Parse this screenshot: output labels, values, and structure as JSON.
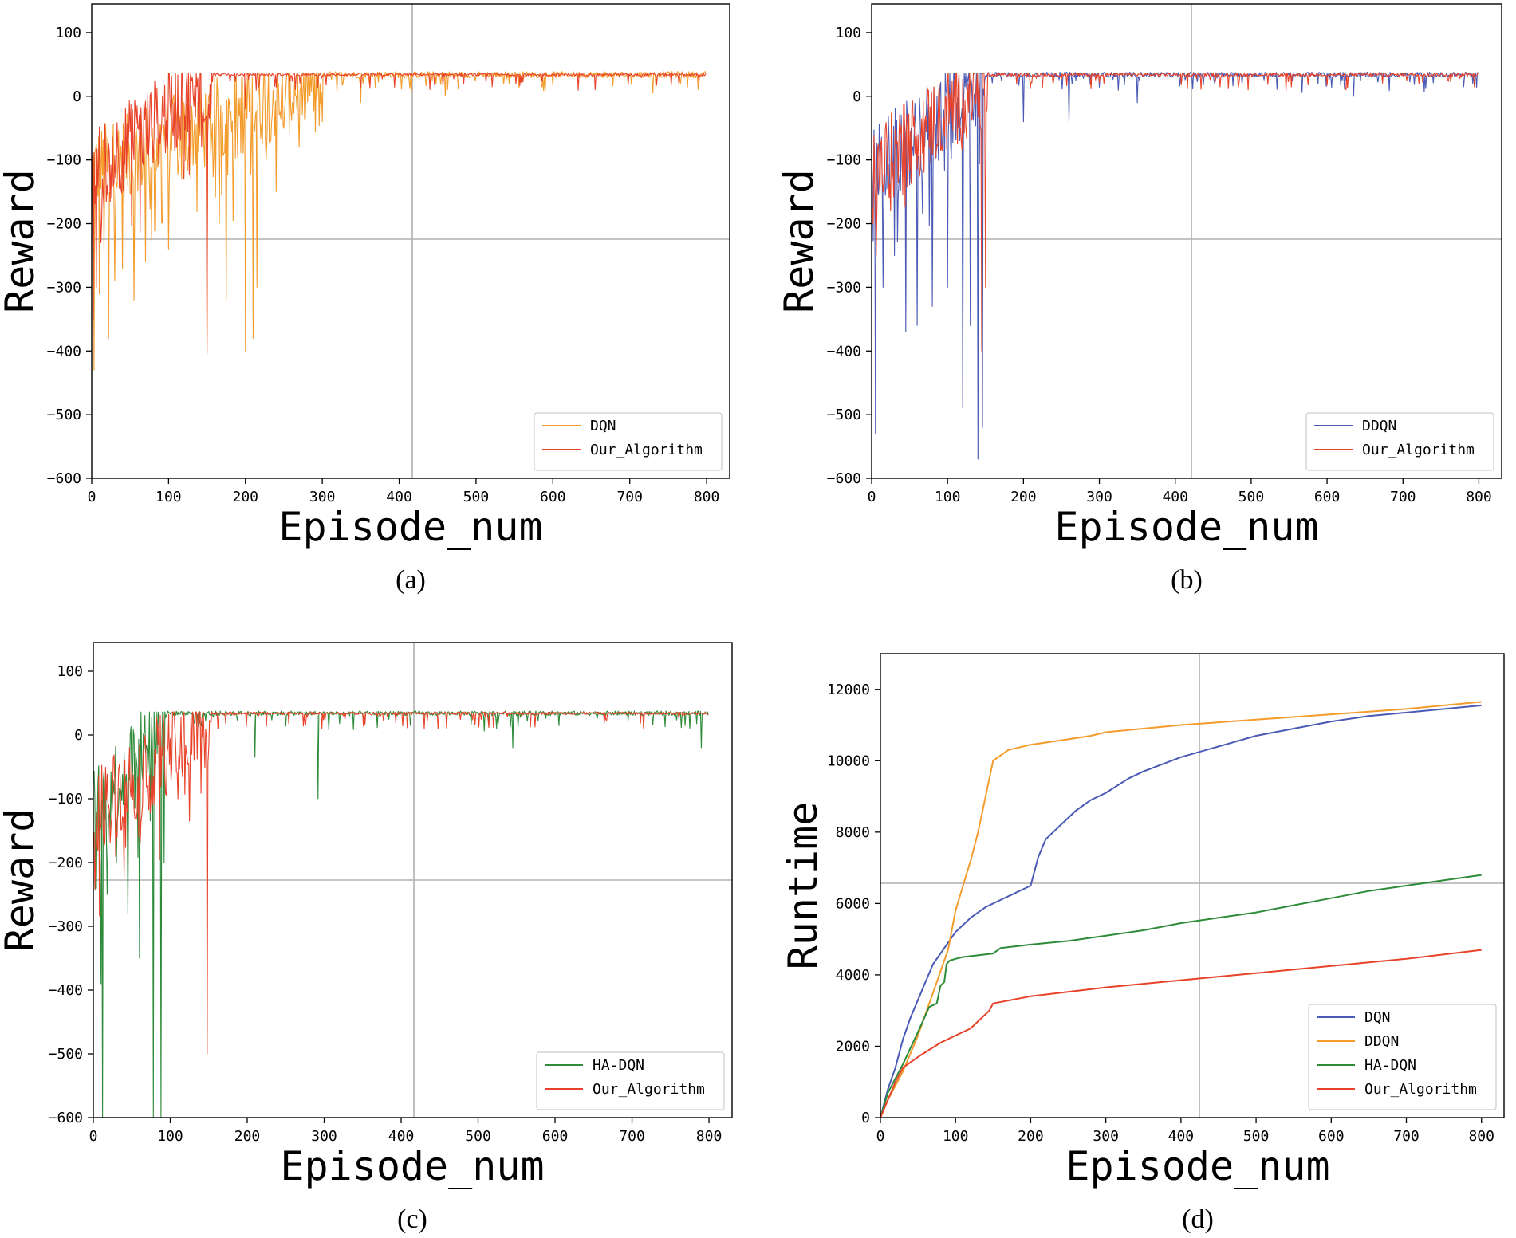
{
  "figure": {
    "colors": {
      "DQN_orange": "#f39c2c",
      "DDQN_blue": "#4a5ab5",
      "HA_DQN_green": "#2e8b3a",
      "Our_Algorithm_red": "#e8432a",
      "crosshair": "#b0b0b0"
    }
  },
  "chart_data": [
    {
      "type": "line",
      "caption": "(a)",
      "xlabel": "Episode_num",
      "ylabel": "Reward",
      "xlim": [
        0,
        830
      ],
      "ylim": [
        -600,
        145
      ],
      "xticks": [
        0,
        100,
        200,
        300,
        400,
        500,
        600,
        700,
        800
      ],
      "yticks": [
        -600,
        -500,
        -400,
        -300,
        -200,
        -100,
        0,
        100
      ],
      "legend_position": "bottom-right",
      "series": [
        {
          "name": "DQN",
          "color": "#f39c2c",
          "n": 800,
          "converge_ep": 300,
          "final": 34,
          "noise": 10,
          "spikes": [
            [
              3,
              -430
            ],
            [
              10,
              -310
            ],
            [
              16,
              -240
            ],
            [
              22,
              -380
            ],
            [
              30,
              -290
            ],
            [
              40,
              -270
            ],
            [
              55,
              -320
            ],
            [
              70,
              -260
            ],
            [
              100,
              -240
            ],
            [
              150,
              -400
            ],
            [
              175,
              -320
            ],
            [
              200,
              -400
            ],
            [
              210,
              -380
            ],
            [
              215,
              -300
            ],
            [
              240,
              -150
            ],
            [
              270,
              -80
            ],
            [
              300,
              -40
            ],
            [
              350,
              -10
            ],
            [
              460,
              0
            ],
            [
              730,
              5
            ]
          ]
        },
        {
          "name": "Our_Algorithm",
          "color": "#e8432a",
          "n": 800,
          "converge_ep": 160,
          "final": 34,
          "noise": 4,
          "spikes": [
            [
              2,
              -350
            ],
            [
              6,
              -300
            ],
            [
              12,
              -230
            ],
            [
              20,
              -140
            ],
            [
              35,
              -90
            ],
            [
              60,
              -50
            ],
            [
              90,
              -60
            ],
            [
              120,
              -130
            ],
            [
              150,
              -405
            ],
            [
              200,
              -20
            ]
          ]
        }
      ]
    },
    {
      "type": "line",
      "caption": "(b)",
      "xlabel": "Episode_num",
      "ylabel": "Reward",
      "xlim": [
        0,
        830
      ],
      "ylim": [
        -600,
        145
      ],
      "xticks": [
        0,
        100,
        200,
        300,
        400,
        500,
        600,
        700,
        800
      ],
      "yticks": [
        -600,
        -500,
        -400,
        -300,
        -200,
        -100,
        0,
        100
      ],
      "legend_position": "bottom-right",
      "series": [
        {
          "name": "DDQN",
          "color": "#4a5ab5",
          "n": 800,
          "converge_ep": 150,
          "final": 34,
          "noise": 8,
          "spikes": [
            [
              5,
              -530
            ],
            [
              15,
              -300
            ],
            [
              30,
              -250
            ],
            [
              45,
              -370
            ],
            [
              60,
              -360
            ],
            [
              80,
              -330
            ],
            [
              100,
              -300
            ],
            [
              120,
              -490
            ],
            [
              130,
              -360
            ],
            [
              140,
              -570
            ],
            [
              146,
              -520
            ],
            [
              200,
              -40
            ],
            [
              260,
              -40
            ],
            [
              350,
              -10
            ],
            [
              635,
              0
            ],
            [
              780,
              15
            ]
          ]
        },
        {
          "name": "Our_Algorithm",
          "color": "#e8432a",
          "n": 800,
          "converge_ep": 155,
          "final": 34,
          "noise": 5,
          "spikes": [
            [
              2,
              -200
            ],
            [
              8,
              -80
            ],
            [
              15,
              -150
            ],
            [
              25,
              -180
            ],
            [
              40,
              -90
            ],
            [
              70,
              -40
            ],
            [
              110,
              -60
            ],
            [
              145,
              -400
            ],
            [
              150,
              -300
            ]
          ]
        }
      ]
    },
    {
      "type": "line",
      "caption": "(c)",
      "xlabel": "Episode_num",
      "ylabel": "Reward",
      "xlim": [
        0,
        830
      ],
      "ylim": [
        -600,
        145
      ],
      "xticks": [
        0,
        100,
        200,
        300,
        400,
        500,
        600,
        700,
        800
      ],
      "yticks": [
        -600,
        -500,
        -400,
        -300,
        -200,
        -100,
        0,
        100
      ],
      "legend_position": "bottom-right",
      "series": [
        {
          "name": "HA-DQN",
          "color": "#2e8b3a",
          "n": 800,
          "converge_ep": 95,
          "final": 34,
          "noise": 7,
          "spikes": [
            [
              4,
              -240
            ],
            [
              10,
              -390
            ],
            [
              12,
              -600
            ],
            [
              18,
              -250
            ],
            [
              30,
              -200
            ],
            [
              45,
              -280
            ],
            [
              60,
              -350
            ],
            [
              78,
              -600
            ],
            [
              88,
              -600
            ],
            [
              92,
              -200
            ],
            [
              210,
              -35
            ],
            [
              292,
              -100
            ],
            [
              545,
              -20
            ],
            [
              790,
              -20
            ]
          ]
        },
        {
          "name": "Our_Algorithm",
          "color": "#e8432a",
          "n": 800,
          "converge_ep": 155,
          "final": 34,
          "noise": 4,
          "spikes": [
            [
              3,
              -200
            ],
            [
              10,
              -140
            ],
            [
              20,
              -110
            ],
            [
              35,
              -70
            ],
            [
              70,
              -80
            ],
            [
              110,
              -100
            ],
            [
              125,
              -135
            ],
            [
              148,
              -500
            ]
          ]
        }
      ]
    },
    {
      "type": "line",
      "caption": "(d)",
      "xlabel": "Episode_num",
      "ylabel": "Runtime",
      "xlim": [
        0,
        830
      ],
      "ylim": [
        0,
        13000
      ],
      "xticks": [
        0,
        100,
        200,
        300,
        400,
        500,
        600,
        700,
        800
      ],
      "yticks": [
        0,
        2000,
        4000,
        6000,
        8000,
        10000,
        12000
      ],
      "legend_position": "bottom-right",
      "series": [
        {
          "name": "DQN",
          "color": "#4a5ab5",
          "x": [
            0,
            10,
            20,
            30,
            40,
            50,
            60,
            70,
            80,
            90,
            100,
            120,
            140,
            160,
            180,
            200,
            210,
            220,
            240,
            260,
            280,
            300,
            330,
            350,
            400,
            450,
            500,
            550,
            600,
            650,
            700,
            750,
            800
          ],
          "y": [
            0,
            800,
            1400,
            2200,
            2800,
            3300,
            3800,
            4300,
            4600,
            4900,
            5200,
            5600,
            5900,
            6100,
            6300,
            6500,
            7300,
            7800,
            8200,
            8600,
            8900,
            9100,
            9500,
            9700,
            10100,
            10400,
            10700,
            10900,
            11100,
            11250,
            11350,
            11450,
            11550
          ]
        },
        {
          "name": "DDQN",
          "color": "#f39c2c",
          "x": [
            0,
            10,
            30,
            50,
            70,
            90,
            100,
            110,
            120,
            130,
            140,
            150,
            170,
            200,
            250,
            280,
            300,
            400,
            500,
            600,
            700,
            800
          ],
          "y": [
            0,
            500,
            1300,
            2300,
            3500,
            4700,
            5800,
            6500,
            7200,
            8000,
            9000,
            10000,
            10300,
            10450,
            10600,
            10700,
            10800,
            11000,
            11150,
            11300,
            11450,
            11650
          ]
        },
        {
          "name": "HA-DQN",
          "color": "#2e8b3a",
          "x": [
            0,
            10,
            30,
            50,
            65,
            75,
            80,
            85,
            88,
            92,
            100,
            110,
            150,
            160,
            200,
            250,
            300,
            350,
            400,
            450,
            500,
            550,
            600,
            650,
            700,
            750,
            800
          ],
          "y": [
            0,
            700,
            1500,
            2400,
            3100,
            3200,
            3700,
            3800,
            4300,
            4400,
            4450,
            4500,
            4600,
            4750,
            4850,
            4950,
            5100,
            5250,
            5450,
            5600,
            5750,
            5950,
            6150,
            6350,
            6500,
            6650,
            6800
          ]
        },
        {
          "name": "Our_Algorithm",
          "color": "#e8432a",
          "x": [
            0,
            10,
            20,
            30,
            50,
            80,
            100,
            120,
            135,
            145,
            150,
            200,
            300,
            400,
            500,
            600,
            700,
            800
          ],
          "y": [
            0,
            500,
            1000,
            1400,
            1700,
            2100,
            2300,
            2500,
            2800,
            3000,
            3200,
            3400,
            3650,
            3850,
            4050,
            4250,
            4450,
            4700
          ]
        }
      ]
    }
  ]
}
